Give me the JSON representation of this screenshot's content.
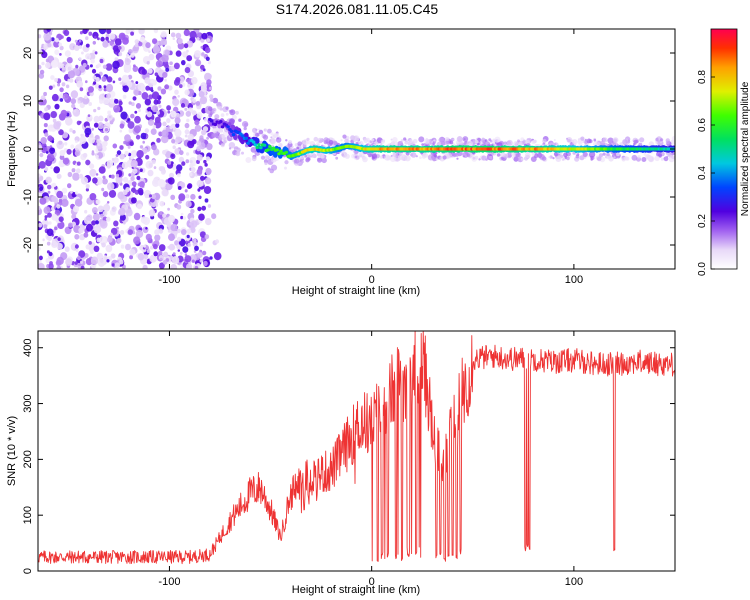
{
  "title": "S174.2026.081.11.05.C45",
  "chart_data": [
    {
      "type": "heatmap",
      "xlabel": "Height of straight line (km)",
      "ylabel": "Frequency (Hz)",
      "xlim": [
        -165,
        150
      ],
      "ylim": [
        -25,
        25
      ],
      "xticks": [
        -100,
        0,
        100
      ],
      "xtick_labels": [
        "-100",
        "0",
        "100"
      ],
      "yticks": [
        -20,
        -10,
        0,
        10,
        20
      ],
      "ytick_labels": [
        "-20",
        "-10",
        "0",
        "10",
        "20"
      ],
      "colorbar": {
        "label": "Normalized spectral amplitude",
        "range": [
          0,
          1
        ],
        "ticks": [
          0.0,
          0.2,
          0.4,
          0.6,
          0.8
        ],
        "tick_labels": [
          "0.0",
          "0.2",
          "0.4",
          "0.6",
          "0.8"
        ]
      },
      "ridge": {
        "description_free": true,
        "x": [
          -80,
          -76,
          -72,
          -68,
          -64,
          -60,
          -56,
          -52,
          -48,
          -44,
          -40,
          -36,
          -32,
          -28,
          -24,
          -20,
          -16,
          -12,
          -8,
          -4,
          0,
          10,
          20,
          30,
          40,
          60,
          80,
          100,
          120,
          150
        ],
        "frequency": [
          6,
          5.5,
          4.5,
          3.5,
          2.5,
          1.5,
          0.8,
          0.2,
          -0.3,
          -0.8,
          -1.5,
          -1.0,
          -0.2,
          0.0,
          -0.3,
          -0.2,
          0.2,
          0.6,
          0.4,
          0.0,
          0.0,
          0.0,
          0.0,
          0.0,
          0.0,
          0.0,
          0.0,
          0.0,
          0.0,
          0.0
        ],
        "amplitude": [
          0.3,
          0.25,
          0.3,
          0.35,
          0.4,
          0.45,
          0.55,
          0.6,
          0.65,
          0.65,
          0.7,
          0.75,
          0.8,
          0.85,
          0.8,
          0.75,
          0.7,
          0.7,
          0.75,
          0.8,
          0.85,
          0.9,
          0.9,
          0.9,
          0.95,
          0.95,
          0.9,
          0.8,
          0.65,
          0.5
        ]
      },
      "noise_region_xlim": [
        -165,
        -80
      ],
      "grid": false
    },
    {
      "type": "line",
      "xlabel": "Height of straight line (km)",
      "ylabel": "SNR (10 * v/v)",
      "xlim": [
        -165,
        150
      ],
      "ylim": [
        0,
        430
      ],
      "xticks": [
        -100,
        0,
        100
      ],
      "xtick_labels": [
        "-100",
        "0",
        "100"
      ],
      "yticks": [
        0,
        100,
        200,
        300,
        400
      ],
      "ytick_labels": [
        "0",
        "100",
        "200",
        "300",
        "400"
      ],
      "series": [
        {
          "color": "#ee3333",
          "x": [
            -165,
            -150,
            -130,
            -110,
            -90,
            -80,
            -75,
            -70,
            -60,
            -55,
            -50,
            -45,
            -40,
            -35,
            -30,
            -25,
            -20,
            -15,
            -10,
            -5,
            0,
            5,
            10,
            15,
            20,
            25,
            28,
            30,
            32,
            35,
            40,
            45,
            50,
            60,
            70,
            80,
            90,
            100,
            110,
            120,
            130,
            140,
            150
          ],
          "values": [
            25,
            25,
            25,
            25,
            25,
            30,
            60,
            90,
            140,
            150,
            110,
            60,
            140,
            160,
            170,
            175,
            180,
            210,
            240,
            270,
            260,
            300,
            320,
            340,
            360,
            375,
            320,
            250,
            220,
            200,
            250,
            320,
            380,
            385,
            380,
            380,
            375,
            378,
            372,
            370,
            375,
            372,
            370
          ]
        }
      ],
      "dips": [
        {
          "x": 3,
          "value": 15
        },
        {
          "x": 5,
          "value": 20
        },
        {
          "x": 8,
          "value": 25
        },
        {
          "x": 12,
          "value": 20
        },
        {
          "x": 15,
          "value": 18
        },
        {
          "x": 18,
          "value": 22
        },
        {
          "x": 22,
          "value": 25
        },
        {
          "x": 32,
          "value": 20
        },
        {
          "x": 34,
          "value": 25
        },
        {
          "x": 36,
          "value": 20
        },
        {
          "x": 38,
          "value": 22
        },
        {
          "x": 40,
          "value": 25
        },
        {
          "x": 42,
          "value": 22
        },
        {
          "x": 44,
          "value": 30
        },
        {
          "x": 76,
          "value": 35
        },
        {
          "x": 77,
          "value": 40
        },
        {
          "x": 78,
          "value": 35
        },
        {
          "x": 120,
          "value": 30
        }
      ],
      "grid": false
    }
  ]
}
